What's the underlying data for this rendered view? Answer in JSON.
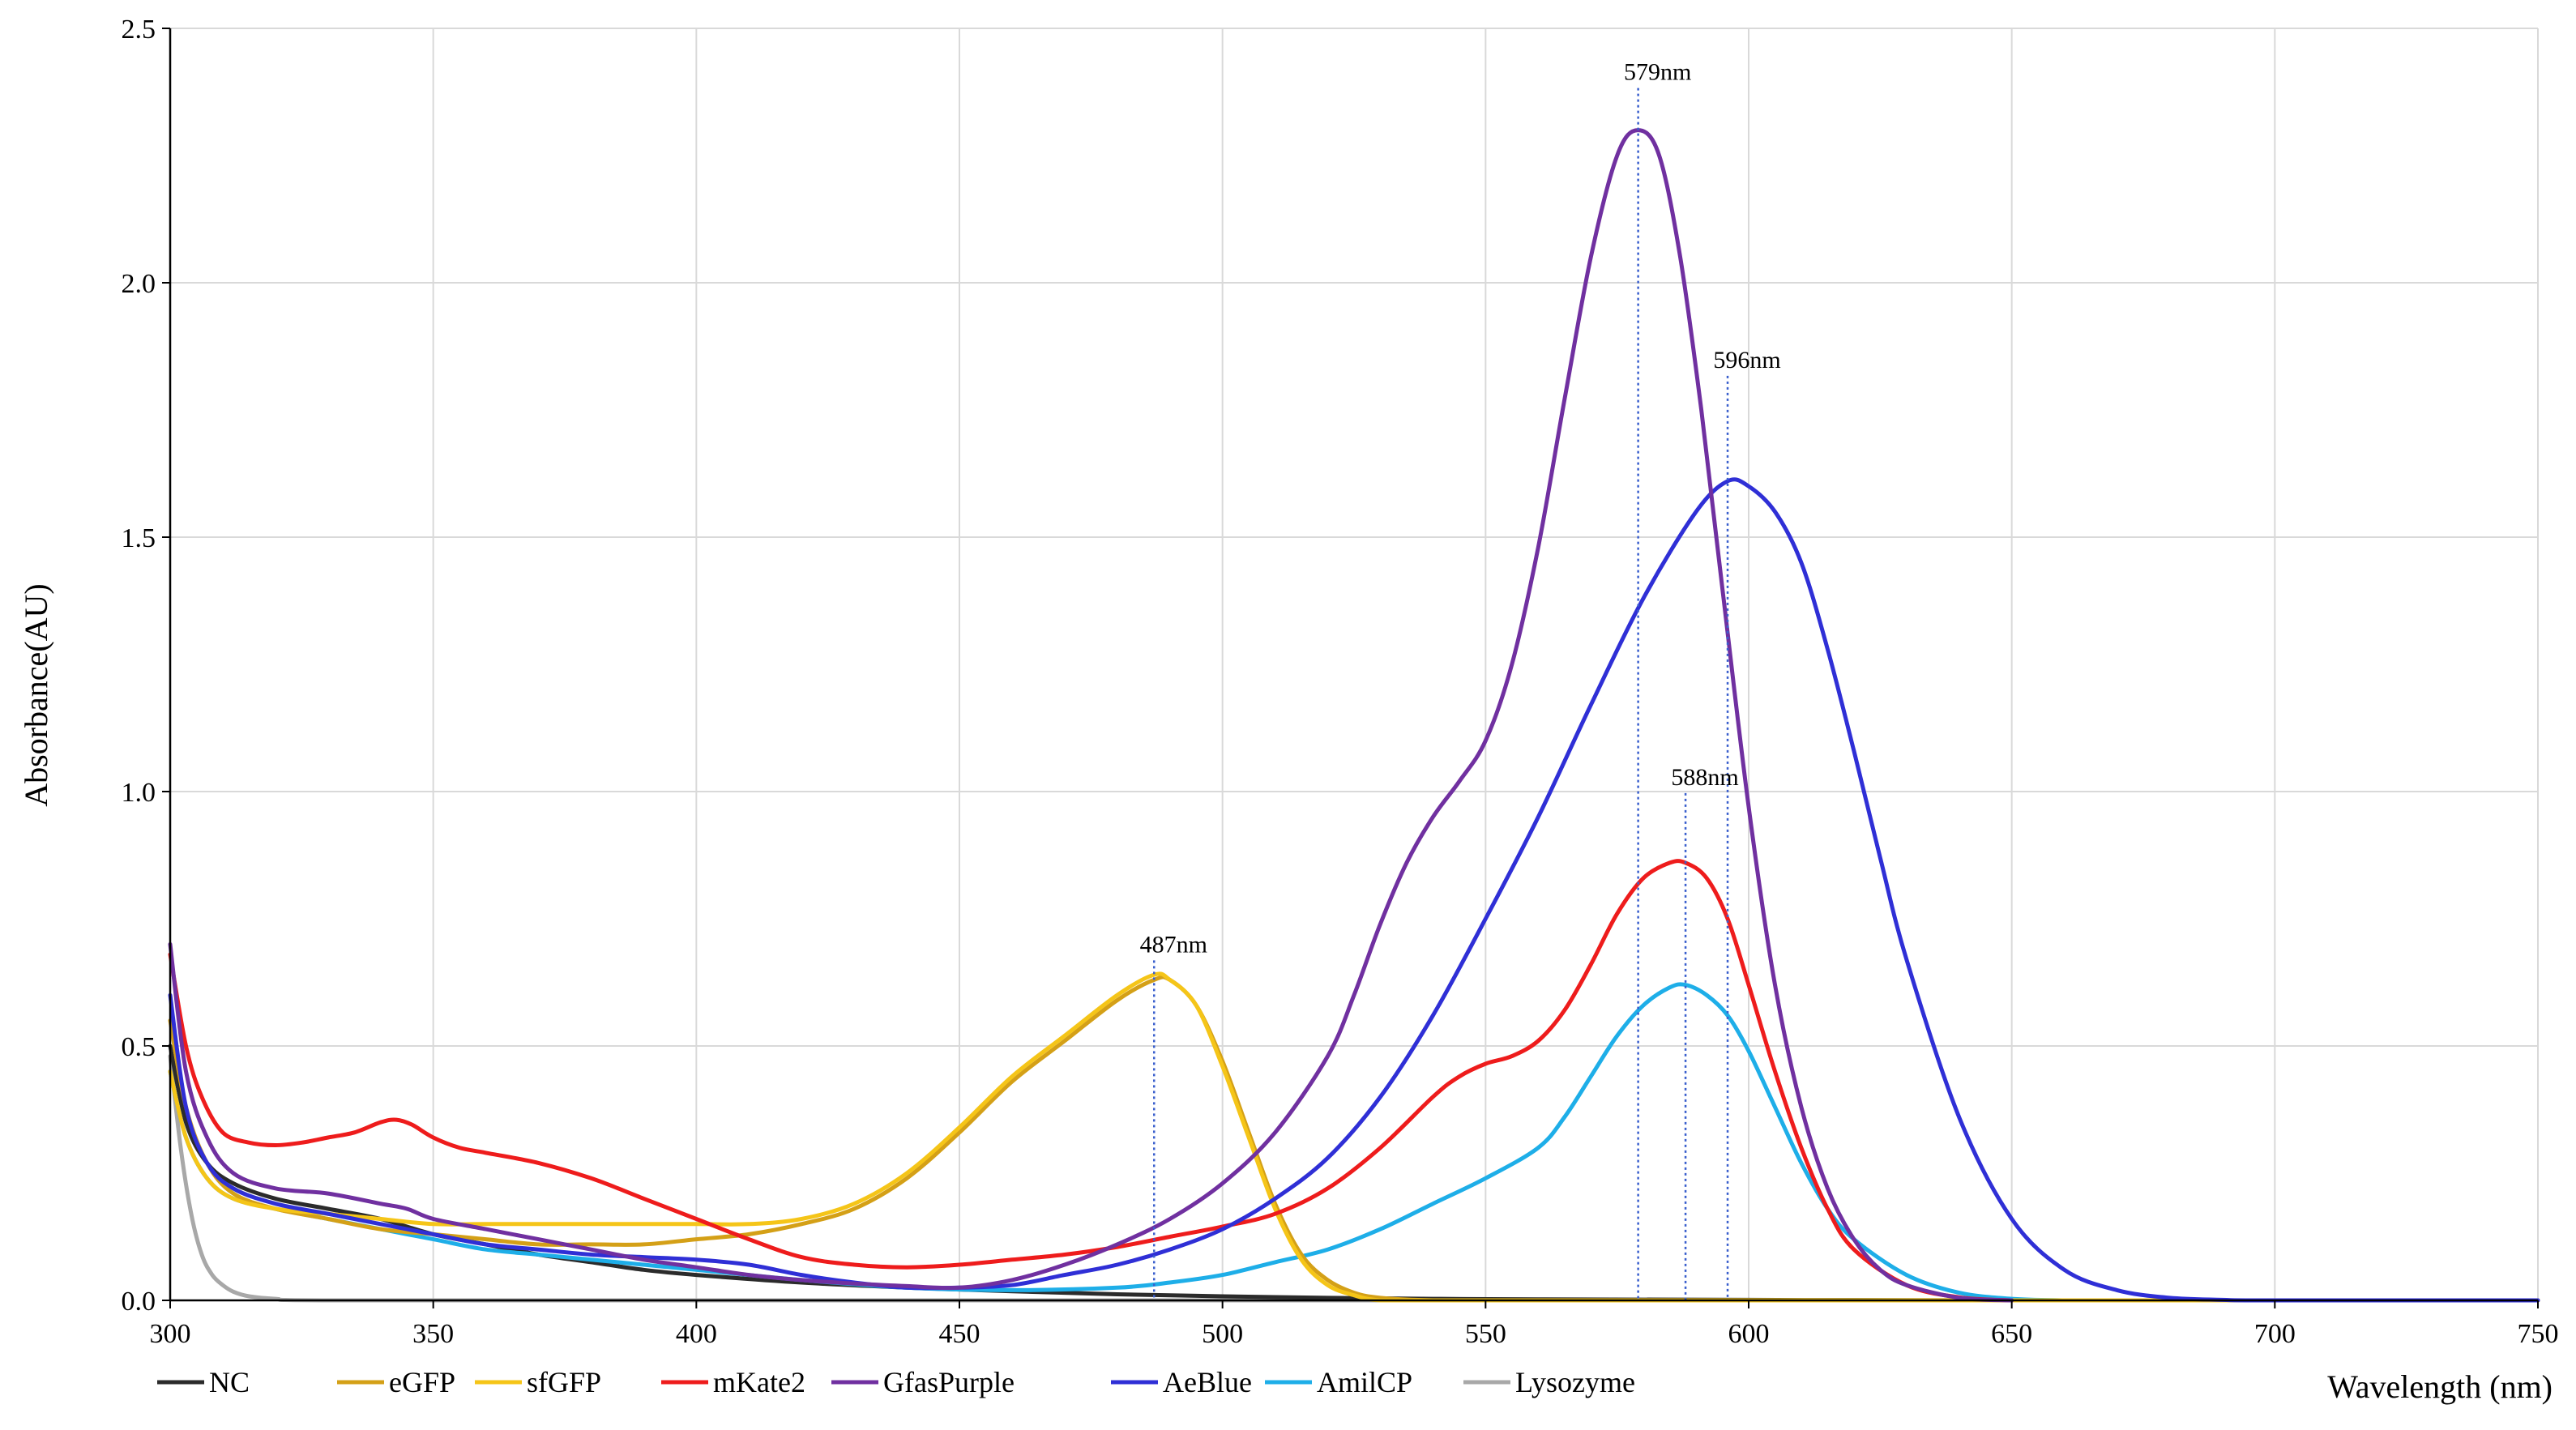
{
  "chart_data": {
    "type": "line",
    "title": "",
    "xlabel": "Wavelength (nm)",
    "ylabel": "Absorbance(AU)",
    "xlim": [
      300,
      750
    ],
    "ylim": [
      0.0,
      2.5
    ],
    "xticks": [
      300,
      350,
      400,
      450,
      500,
      550,
      600,
      650,
      700,
      750
    ],
    "xtick_labels": [
      "300",
      "350",
      "400",
      "450",
      "500",
      "550",
      "600",
      "650",
      "700",
      "750"
    ],
    "yticks": [
      0,
      0.5,
      1,
      1.5,
      2,
      2.5
    ],
    "ytick_labels": [
      "0.0",
      "0.5",
      "1.0",
      "1.5",
      "2.0",
      "2.5"
    ],
    "grid": true,
    "legend_position": "bottom",
    "series": [
      {
        "name": "NC",
        "color": "#2b2b2b",
        "x": [
          300,
          303,
          307,
          312,
          320,
          330,
          340,
          350,
          360,
          370,
          380,
          390,
          400,
          420,
          440,
          460,
          480,
          500,
          520,
          540,
          560,
          600,
          650,
          750
        ],
        "y": [
          0.5,
          0.35,
          0.27,
          0.23,
          0.2,
          0.18,
          0.16,
          0.13,
          0.11,
          0.09,
          0.075,
          0.06,
          0.05,
          0.035,
          0.025,
          0.018,
          0.012,
          0.008,
          0.005,
          0.003,
          0.002,
          0.001,
          0.0,
          0.0
        ]
      },
      {
        "name": "eGFP",
        "color": "#d4a017",
        "x": [
          300,
          303,
          307,
          312,
          320,
          330,
          340,
          350,
          360,
          370,
          380,
          390,
          400,
          410,
          420,
          430,
          440,
          450,
          460,
          470,
          480,
          487,
          490,
          495,
          500,
          505,
          510,
          515,
          520,
          525,
          530,
          540,
          560,
          600,
          750
        ],
        "y": [
          0.55,
          0.38,
          0.27,
          0.21,
          0.18,
          0.16,
          0.14,
          0.13,
          0.12,
          0.11,
          0.11,
          0.11,
          0.12,
          0.13,
          0.15,
          0.18,
          0.24,
          0.33,
          0.43,
          0.51,
          0.59,
          0.63,
          0.63,
          0.58,
          0.47,
          0.33,
          0.19,
          0.09,
          0.04,
          0.015,
          0.005,
          0.0,
          0.0,
          0.0,
          0.0
        ]
      },
      {
        "name": "sfGFP",
        "color": "#f5c518",
        "x": [
          300,
          303,
          307,
          312,
          320,
          330,
          340,
          350,
          360,
          370,
          380,
          390,
          400,
          410,
          420,
          430,
          440,
          450,
          460,
          470,
          480,
          487,
          490,
          495,
          500,
          505,
          510,
          515,
          520,
          525,
          530,
          540,
          560,
          600,
          750
        ],
        "y": [
          0.45,
          0.32,
          0.24,
          0.2,
          0.18,
          0.17,
          0.16,
          0.15,
          0.15,
          0.15,
          0.15,
          0.15,
          0.15,
          0.15,
          0.16,
          0.19,
          0.25,
          0.34,
          0.44,
          0.52,
          0.6,
          0.64,
          0.63,
          0.58,
          0.46,
          0.32,
          0.18,
          0.08,
          0.03,
          0.01,
          0.0,
          0.0,
          0.0,
          0.0,
          0.0
        ]
      },
      {
        "name": "mKate2",
        "color": "#ee1c1c",
        "x": [
          300,
          303,
          306,
          310,
          315,
          320,
          325,
          330,
          335,
          340,
          343,
          346,
          350,
          355,
          360,
          370,
          380,
          390,
          400,
          410,
          420,
          430,
          440,
          450,
          460,
          470,
          480,
          490,
          500,
          510,
          520,
          530,
          540,
          545,
          550,
          555,
          560,
          565,
          570,
          575,
          580,
          585,
          588,
          592,
          596,
          600,
          605,
          610,
          615,
          620,
          630,
          640,
          650
        ],
        "y": [
          0.68,
          0.5,
          0.4,
          0.33,
          0.31,
          0.305,
          0.31,
          0.32,
          0.33,
          0.35,
          0.355,
          0.345,
          0.32,
          0.3,
          0.29,
          0.27,
          0.24,
          0.2,
          0.16,
          0.12,
          0.085,
          0.07,
          0.065,
          0.07,
          0.08,
          0.09,
          0.105,
          0.125,
          0.145,
          0.17,
          0.22,
          0.3,
          0.4,
          0.44,
          0.465,
          0.48,
          0.51,
          0.57,
          0.66,
          0.76,
          0.83,
          0.86,
          0.86,
          0.83,
          0.75,
          0.62,
          0.45,
          0.3,
          0.18,
          0.1,
          0.03,
          0.006,
          0.0
        ]
      },
      {
        "name": "GfasPurple",
        "color": "#7030a0",
        "x": [
          300,
          303,
          307,
          312,
          320,
          330,
          340,
          345,
          350,
          360,
          370,
          380,
          390,
          400,
          410,
          420,
          430,
          440,
          450,
          460,
          470,
          480,
          490,
          500,
          510,
          520,
          525,
          530,
          535,
          540,
          545,
          550,
          555,
          560,
          565,
          570,
          575,
          579,
          583,
          587,
          591,
          595,
          600,
          605,
          610,
          615,
          620,
          625,
          630,
          640,
          650
        ],
        "y": [
          0.7,
          0.45,
          0.32,
          0.25,
          0.22,
          0.21,
          0.19,
          0.18,
          0.16,
          0.14,
          0.12,
          0.1,
          0.08,
          0.065,
          0.05,
          0.04,
          0.033,
          0.028,
          0.025,
          0.04,
          0.07,
          0.11,
          0.16,
          0.23,
          0.33,
          0.48,
          0.6,
          0.74,
          0.86,
          0.95,
          1.02,
          1.1,
          1.25,
          1.48,
          1.77,
          2.05,
          2.25,
          2.3,
          2.25,
          2.05,
          1.75,
          1.4,
          0.97,
          0.62,
          0.38,
          0.22,
          0.12,
          0.06,
          0.03,
          0.005,
          0.0
        ]
      },
      {
        "name": "AeBlue",
        "color": "#2f2fd6",
        "x": [
          300,
          303,
          307,
          312,
          320,
          330,
          340,
          350,
          360,
          370,
          380,
          390,
          400,
          410,
          420,
          430,
          440,
          450,
          460,
          470,
          480,
          490,
          500,
          510,
          520,
          530,
          540,
          550,
          560,
          570,
          580,
          590,
          596,
          600,
          605,
          610,
          615,
          620,
          625,
          630,
          640,
          650,
          660,
          670,
          680,
          690,
          700,
          750
        ],
        "y": [
          0.6,
          0.38,
          0.27,
          0.22,
          0.19,
          0.17,
          0.15,
          0.13,
          0.11,
          0.1,
          0.09,
          0.085,
          0.08,
          0.07,
          0.05,
          0.035,
          0.025,
          0.025,
          0.03,
          0.05,
          0.07,
          0.1,
          0.14,
          0.2,
          0.28,
          0.4,
          0.56,
          0.75,
          0.95,
          1.17,
          1.38,
          1.55,
          1.61,
          1.6,
          1.55,
          1.45,
          1.28,
          1.08,
          0.87,
          0.67,
          0.36,
          0.16,
          0.06,
          0.02,
          0.005,
          0.001,
          0.0,
          0.0
        ]
      },
      {
        "name": "AmilCP",
        "color": "#1eaee8",
        "x": [
          300,
          303,
          307,
          312,
          320,
          330,
          340,
          350,
          360,
          370,
          380,
          390,
          400,
          420,
          440,
          460,
          480,
          490,
          500,
          510,
          520,
          530,
          540,
          550,
          560,
          565,
          570,
          575,
          580,
          585,
          588,
          592,
          596,
          600,
          605,
          610,
          615,
          620,
          630,
          640,
          650,
          660
        ],
        "y": [
          0.45,
          0.32,
          0.24,
          0.2,
          0.18,
          0.16,
          0.14,
          0.12,
          0.1,
          0.09,
          0.08,
          0.07,
          0.06,
          0.04,
          0.025,
          0.02,
          0.025,
          0.035,
          0.05,
          0.075,
          0.1,
          0.14,
          0.19,
          0.24,
          0.3,
          0.36,
          0.44,
          0.52,
          0.58,
          0.615,
          0.62,
          0.6,
          0.56,
          0.49,
          0.38,
          0.27,
          0.18,
          0.12,
          0.05,
          0.015,
          0.003,
          0.0
        ]
      },
      {
        "name": "Lysozyme",
        "color": "#a8a8a8",
        "x": [
          300,
          302,
          304,
          306,
          308,
          310,
          312,
          315,
          320,
          330,
          400,
          750
        ],
        "y": [
          0.48,
          0.3,
          0.17,
          0.09,
          0.05,
          0.03,
          0.017,
          0.008,
          0.003,
          0.0,
          0.0,
          0.0
        ]
      }
    ],
    "annotations": [
      {
        "label": "487nm",
        "x": 487,
        "y": 0.63
      },
      {
        "label": "579nm",
        "x": 579,
        "y": 2.3
      },
      {
        "label": "596nm",
        "x": 596,
        "y": 1.61
      },
      {
        "label": "588nm",
        "x": 588,
        "y": 0.86
      }
    ]
  }
}
